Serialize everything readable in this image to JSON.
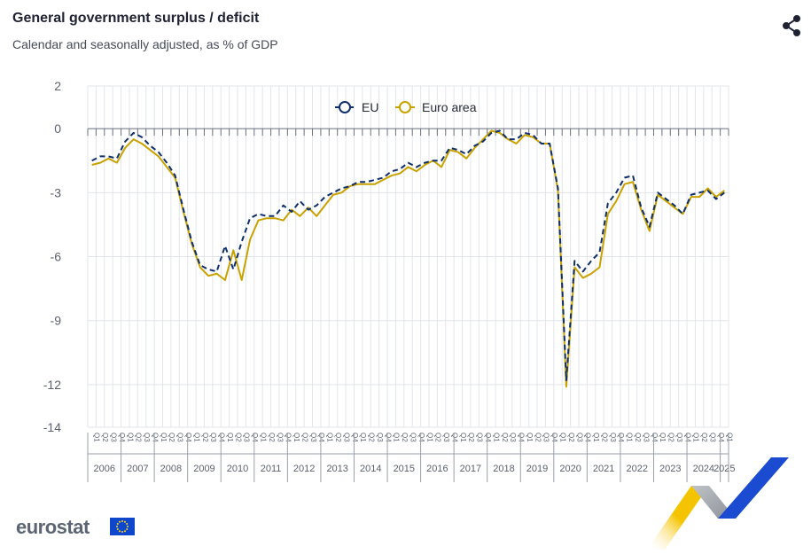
{
  "header": {
    "title": "General government surplus / deficit",
    "subtitle": "Calendar and seasonally adjusted, as % of GDP"
  },
  "brand": {
    "logo_text": "eurostat"
  },
  "icons": {
    "share": "share-icon",
    "flag": "eu-flag-icon"
  },
  "colors": {
    "eu": "#0e2f6b",
    "euro_area": "#c9a200",
    "grid": "#e2e5ea"
  },
  "chart_data": {
    "type": "line",
    "title": "General government surplus / deficit",
    "subtitle": "Calendar and seasonally adjusted, as % of GDP",
    "ylim": [
      -14,
      2
    ],
    "yticks": [
      2,
      0,
      -3,
      -6,
      -9,
      -12,
      -14
    ],
    "grid": true,
    "legend_position": "top-center",
    "years": [
      "2006",
      "2007",
      "2008",
      "2009",
      "2010",
      "2011",
      "2012",
      "2013",
      "2014",
      "2015",
      "2016",
      "2017",
      "2018",
      "2019",
      "2020",
      "2021",
      "2022",
      "2023",
      "2024",
      "2025"
    ],
    "quarter_labels": [
      "Q1",
      "Q2",
      "Q3",
      "Q4"
    ],
    "x": [
      "2006Q1",
      "2006Q2",
      "2006Q3",
      "2006Q4",
      "2007Q1",
      "2007Q2",
      "2007Q3",
      "2007Q4",
      "2008Q1",
      "2008Q2",
      "2008Q3",
      "2008Q4",
      "2009Q1",
      "2009Q2",
      "2009Q3",
      "2009Q4",
      "2010Q1",
      "2010Q2",
      "2010Q3",
      "2010Q4",
      "2011Q1",
      "2011Q2",
      "2011Q3",
      "2011Q4",
      "2012Q1",
      "2012Q2",
      "2012Q3",
      "2012Q4",
      "2013Q1",
      "2013Q2",
      "2013Q3",
      "2013Q4",
      "2014Q1",
      "2014Q2",
      "2014Q3",
      "2014Q4",
      "2015Q1",
      "2015Q2",
      "2015Q3",
      "2015Q4",
      "2016Q1",
      "2016Q2",
      "2016Q3",
      "2016Q4",
      "2017Q1",
      "2017Q2",
      "2017Q3",
      "2017Q4",
      "2018Q1",
      "2018Q2",
      "2018Q3",
      "2018Q4",
      "2019Q1",
      "2019Q2",
      "2019Q3",
      "2019Q4",
      "2020Q1",
      "2020Q2",
      "2020Q3",
      "2020Q4",
      "2021Q1",
      "2021Q2",
      "2021Q3",
      "2021Q4",
      "2022Q1",
      "2022Q2",
      "2022Q3",
      "2022Q4",
      "2023Q1",
      "2023Q2",
      "2023Q3",
      "2023Q4",
      "2024Q1",
      "2024Q2",
      "2024Q3",
      "2024Q4",
      "2025Q1"
    ],
    "series": [
      {
        "name": "EU",
        "style": "dashed",
        "values": [
          -1.5,
          -1.3,
          -1.3,
          -1.4,
          -0.6,
          -0.2,
          -0.4,
          -0.8,
          -1.1,
          -1.6,
          -2.2,
          -3.8,
          -5.3,
          -6.4,
          -6.6,
          -6.7,
          -5.5,
          -6.6,
          -5.3,
          -4.2,
          -4.0,
          -4.1,
          -4.1,
          -3.6,
          -3.9,
          -3.4,
          -3.8,
          -3.6,
          -3.2,
          -3.0,
          -2.8,
          -2.7,
          -2.5,
          -2.5,
          -2.4,
          -2.3,
          -2.0,
          -1.9,
          -1.6,
          -1.8,
          -1.6,
          -1.5,
          -1.5,
          -0.9,
          -1.0,
          -1.2,
          -0.8,
          -0.6,
          -0.2,
          -0.1,
          -0.5,
          -0.5,
          -0.2,
          -0.3,
          -0.7,
          -0.7,
          -2.8,
          -11.8,
          -6.2,
          -6.7,
          -6.2,
          -5.8,
          -3.5,
          -3.0,
          -2.3,
          -2.2,
          -3.7,
          -4.6,
          -3.0,
          -3.3,
          -3.6,
          -4.0,
          -3.1,
          -3.0,
          -2.9,
          -3.3,
          -3.0
        ]
      },
      {
        "name": "Euro area",
        "style": "solid",
        "values": [
          -1.7,
          -1.6,
          -1.4,
          -1.6,
          -0.9,
          -0.5,
          -0.7,
          -1.0,
          -1.3,
          -1.8,
          -2.3,
          -3.9,
          -5.4,
          -6.5,
          -6.9,
          -6.8,
          -7.1,
          -5.7,
          -7.1,
          -5.2,
          -4.3,
          -4.2,
          -4.2,
          -4.3,
          -3.8,
          -4.1,
          -3.7,
          -4.1,
          -3.6,
          -3.1,
          -3.0,
          -2.7,
          -2.6,
          -2.6,
          -2.6,
          -2.4,
          -2.2,
          -2.1,
          -1.8,
          -2.0,
          -1.7,
          -1.5,
          -1.8,
          -1.0,
          -1.1,
          -1.4,
          -0.9,
          -0.5,
          -0.1,
          -0.2,
          -0.5,
          -0.7,
          -0.3,
          -0.4,
          -0.7,
          -0.7,
          -2.9,
          -12.1,
          -6.5,
          -7.0,
          -6.8,
          -6.5,
          -4.0,
          -3.4,
          -2.6,
          -2.5,
          -3.8,
          -4.8,
          -3.1,
          -3.4,
          -3.7,
          -4.0,
          -3.2,
          -3.2,
          -2.8,
          -3.2,
          -2.9
        ]
      }
    ]
  }
}
